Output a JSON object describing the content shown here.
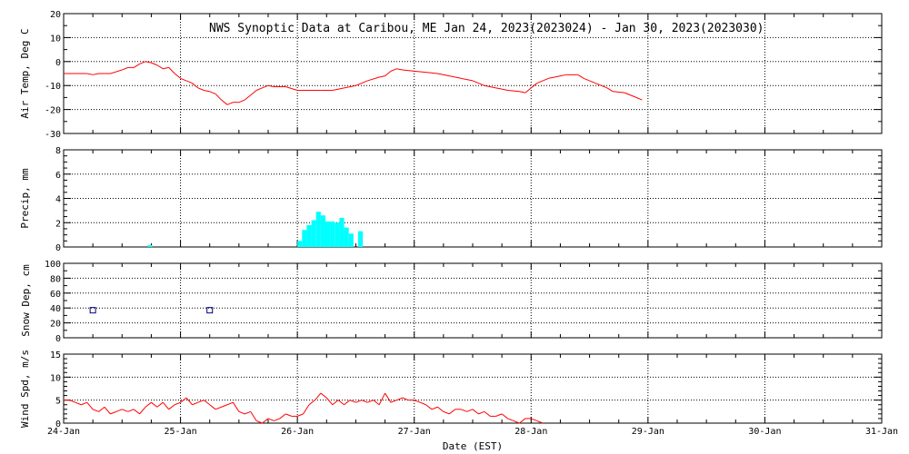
{
  "title": "NWS Synoptic Data at Caribou, ME   Jan 24, 2023(2023024) - Jan 30, 2023(2023030)",
  "xlabel": "Date (EST)",
  "x_ticks": [
    "24-Jan",
    "25-Jan",
    "26-Jan",
    "27-Jan",
    "28-Jan",
    "29-Jan",
    "30-Jan",
    "31-Jan"
  ],
  "colors": {
    "line": "#ff0000",
    "precip": "#00ffff",
    "snow": "#000080",
    "axis": "#000000"
  },
  "chart_data": [
    {
      "type": "line",
      "ylabel": "Air Temp, Deg C",
      "ylim": [
        -30,
        20
      ],
      "yticks": [
        20,
        10,
        0,
        -10,
        -20,
        -30
      ],
      "x_unit": "days since 24-Jan 00:00",
      "series": [
        {
          "points": [
            [
              0,
              -5
            ],
            [
              0.1,
              -5
            ],
            [
              0.2,
              -5
            ],
            [
              0.25,
              -5.5
            ],
            [
              0.3,
              -5
            ],
            [
              0.4,
              -5
            ],
            [
              0.5,
              -3.5
            ],
            [
              0.55,
              -2.5
            ],
            [
              0.6,
              -2.5
            ],
            [
              0.65,
              -1
            ],
            [
              0.7,
              0
            ],
            [
              0.75,
              -0.5
            ],
            [
              0.8,
              -1.5
            ],
            [
              0.85,
              -3
            ],
            [
              0.9,
              -2.5
            ],
            [
              0.95,
              -5
            ],
            [
              1.0,
              -7
            ],
            [
              1.05,
              -8
            ],
            [
              1.1,
              -9
            ],
            [
              1.15,
              -11
            ],
            [
              1.2,
              -12
            ],
            [
              1.25,
              -12.5
            ],
            [
              1.3,
              -13.5
            ],
            [
              1.35,
              -16
            ],
            [
              1.4,
              -18
            ],
            [
              1.45,
              -17
            ],
            [
              1.5,
              -17
            ],
            [
              1.55,
              -16
            ],
            [
              1.6,
              -14
            ],
            [
              1.65,
              -12
            ],
            [
              1.7,
              -11
            ],
            [
              1.75,
              -10
            ],
            [
              1.8,
              -10.5
            ],
            [
              1.9,
              -10.5
            ],
            [
              2.0,
              -12
            ],
            [
              2.1,
              -12
            ],
            [
              2.2,
              -12
            ],
            [
              2.3,
              -12
            ],
            [
              2.4,
              -11
            ],
            [
              2.5,
              -10
            ],
            [
              2.6,
              -8
            ],
            [
              2.7,
              -6.5
            ],
            [
              2.75,
              -6
            ],
            [
              2.8,
              -4
            ],
            [
              2.85,
              -3
            ],
            [
              2.9,
              -3.5
            ],
            [
              3.0,
              -4
            ],
            [
              3.1,
              -4.5
            ],
            [
              3.2,
              -5
            ],
            [
              3.3,
              -6
            ],
            [
              3.4,
              -7
            ],
            [
              3.5,
              -8
            ],
            [
              3.6,
              -10
            ],
            [
              3.7,
              -11
            ],
            [
              3.75,
              -11.5
            ],
            [
              3.8,
              -12
            ],
            [
              3.9,
              -12.5
            ],
            [
              3.95,
              -13
            ],
            [
              4.0,
              -11
            ],
            [
              4.05,
              -9
            ],
            [
              4.1,
              -8
            ],
            [
              4.15,
              -7
            ],
            [
              4.2,
              -6.5
            ],
            [
              4.25,
              -6
            ],
            [
              4.3,
              -5.5
            ],
            [
              4.4,
              -5.5
            ],
            [
              4.45,
              -7
            ],
            [
              4.5,
              -8
            ],
            [
              4.55,
              -9
            ],
            [
              4.6,
              -10
            ],
            [
              4.65,
              -11
            ],
            [
              4.7,
              -12.5
            ],
            [
              4.8,
              -13
            ],
            [
              4.9,
              -15
            ],
            [
              4.95,
              -16
            ]
          ]
        }
      ]
    },
    {
      "type": "bar",
      "ylabel": "Precip, mm",
      "ylim": [
        0,
        8
      ],
      "yticks": [
        8,
        6,
        4,
        2,
        0
      ],
      "x_unit": "days since 24-Jan 00:00",
      "bar_width_days": 0.04,
      "bars": [
        [
          0.72,
          0.15
        ],
        [
          2.0,
          0.5
        ],
        [
          2.04,
          1.4
        ],
        [
          2.08,
          1.8
        ],
        [
          2.12,
          2.2
        ],
        [
          2.16,
          2.9
        ],
        [
          2.2,
          2.6
        ],
        [
          2.24,
          2.1
        ],
        [
          2.28,
          2.1
        ],
        [
          2.32,
          2.0
        ],
        [
          2.36,
          2.4
        ],
        [
          2.4,
          1.6
        ],
        [
          2.44,
          1.1
        ],
        [
          2.52,
          1.3
        ]
      ]
    },
    {
      "type": "scatter",
      "ylabel": "Snow Dep, cm",
      "ylim": [
        0,
        100
      ],
      "yticks": [
        100,
        80,
        60,
        40,
        20,
        0
      ],
      "x_unit": "days since 24-Jan 00:00",
      "points": [
        [
          0.25,
          37
        ],
        [
          1.25,
          37
        ]
      ]
    },
    {
      "type": "line",
      "ylabel": "Wind Spd, m/s",
      "ylim": [
        0,
        15
      ],
      "yticks": [
        15,
        10,
        5,
        0
      ],
      "x_unit": "days since 24-Jan 00:00",
      "series": [
        {
          "points": [
            [
              0,
              5
            ],
            [
              0.05,
              5
            ],
            [
              0.1,
              4.5
            ],
            [
              0.15,
              4
            ],
            [
              0.2,
              4.5
            ],
            [
              0.25,
              3
            ],
            [
              0.3,
              2.5
            ],
            [
              0.35,
              3.5
            ],
            [
              0.4,
              2
            ],
            [
              0.45,
              2.5
            ],
            [
              0.5,
              3
            ],
            [
              0.55,
              2.5
            ],
            [
              0.6,
              3
            ],
            [
              0.65,
              2
            ],
            [
              0.7,
              3.5
            ],
            [
              0.75,
              4.5
            ],
            [
              0.8,
              3.5
            ],
            [
              0.85,
              4.5
            ],
            [
              0.9,
              3
            ],
            [
              0.95,
              4
            ],
            [
              1.0,
              4.5
            ],
            [
              1.05,
              5.5
            ],
            [
              1.1,
              4
            ],
            [
              1.15,
              4.5
            ],
            [
              1.2,
              5
            ],
            [
              1.25,
              4
            ],
            [
              1.3,
              3
            ],
            [
              1.35,
              3.5
            ],
            [
              1.4,
              4
            ],
            [
              1.45,
              4.5
            ],
            [
              1.5,
              2.5
            ],
            [
              1.55,
              2
            ],
            [
              1.6,
              2.5
            ],
            [
              1.65,
              0.5
            ],
            [
              1.7,
              0
            ],
            [
              1.75,
              1
            ],
            [
              1.8,
              0.5
            ],
            [
              1.85,
              1
            ],
            [
              1.9,
              2
            ],
            [
              1.95,
              1.5
            ],
            [
              2.0,
              1.5
            ],
            [
              2.05,
              2
            ],
            [
              2.1,
              4
            ],
            [
              2.15,
              5
            ],
            [
              2.2,
              6.5
            ],
            [
              2.25,
              5.5
            ],
            [
              2.3,
              4
            ],
            [
              2.35,
              5
            ],
            [
              2.4,
              4
            ],
            [
              2.45,
              5
            ],
            [
              2.5,
              4.5
            ],
            [
              2.55,
              5
            ],
            [
              2.6,
              4.5
            ],
            [
              2.65,
              5
            ],
            [
              2.7,
              4
            ],
            [
              2.75,
              6.5
            ],
            [
              2.8,
              4.5
            ],
            [
              2.85,
              5
            ],
            [
              2.9,
              5.5
            ],
            [
              2.95,
              5
            ],
            [
              3.0,
              5
            ],
            [
              3.05,
              4.5
            ],
            [
              3.1,
              4
            ],
            [
              3.15,
              3
            ],
            [
              3.2,
              3.5
            ],
            [
              3.25,
              2.5
            ],
            [
              3.3,
              2
            ],
            [
              3.35,
              3
            ],
            [
              3.4,
              3
            ],
            [
              3.45,
              2.5
            ],
            [
              3.5,
              3
            ],
            [
              3.55,
              2
            ],
            [
              3.6,
              2.5
            ],
            [
              3.65,
              1.5
            ],
            [
              3.7,
              1.5
            ],
            [
              3.75,
              2
            ],
            [
              3.8,
              1
            ],
            [
              3.85,
              0.5
            ],
            [
              3.9,
              0
            ],
            [
              3.95,
              1
            ],
            [
              4.0,
              1
            ],
            [
              4.05,
              0.5
            ],
            [
              4.1,
              0
            ]
          ]
        }
      ]
    }
  ]
}
